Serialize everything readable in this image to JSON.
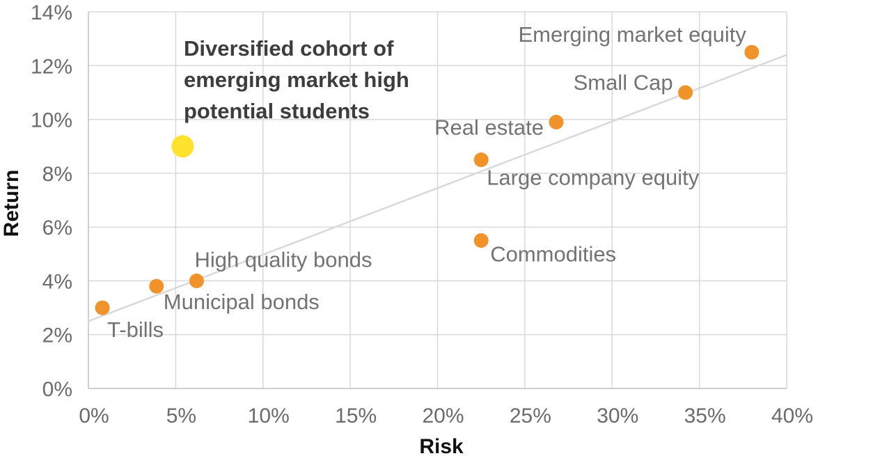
{
  "chart_data": {
    "type": "scatter",
    "title": "",
    "xlabel": "Risk",
    "ylabel": "Return",
    "xlim": [
      0,
      40
    ],
    "ylim": [
      0,
      14
    ],
    "x_ticks": [
      "0%",
      "5%",
      "10%",
      "15%",
      "20%",
      "25%",
      "30%",
      "35%",
      "40%"
    ],
    "y_ticks": [
      "0%",
      "2%",
      "4%",
      "6%",
      "8%",
      "10%",
      "12%",
      "14%"
    ],
    "grid": true,
    "legend": "none",
    "points": [
      {
        "label": "T-bills",
        "x": 0.8,
        "y": 3.0,
        "color": "#f0932b"
      },
      {
        "label": "Municipal bonds",
        "x": 3.9,
        "y": 3.8,
        "color": "#f0932b"
      },
      {
        "label": "High quality bonds",
        "x": 6.2,
        "y": 4.0,
        "color": "#f0932b"
      },
      {
        "label": "Commodities",
        "x": 22.5,
        "y": 5.5,
        "color": "#f0932b"
      },
      {
        "label": "Large company equity",
        "x": 22.5,
        "y": 8.5,
        "color": "#f0932b"
      },
      {
        "label": "Real estate",
        "x": 26.8,
        "y": 9.9,
        "color": "#f0932b"
      },
      {
        "label": "Small Cap",
        "x": 34.2,
        "y": 11.0,
        "color": "#f0932b"
      },
      {
        "label": "Emerging market equity",
        "x": 38.0,
        "y": 12.5,
        "color": "#f0932b"
      }
    ],
    "highlight": {
      "x": 5.4,
      "y": 9.0,
      "color": "#ffe22e",
      "annotation": [
        "Diversified cohort of",
        "emerging market high",
        "potential students"
      ]
    },
    "trendline": {
      "x": [
        0,
        40
      ],
      "y": [
        2.5,
        12.4
      ],
      "color": "#d9d9d9"
    }
  }
}
